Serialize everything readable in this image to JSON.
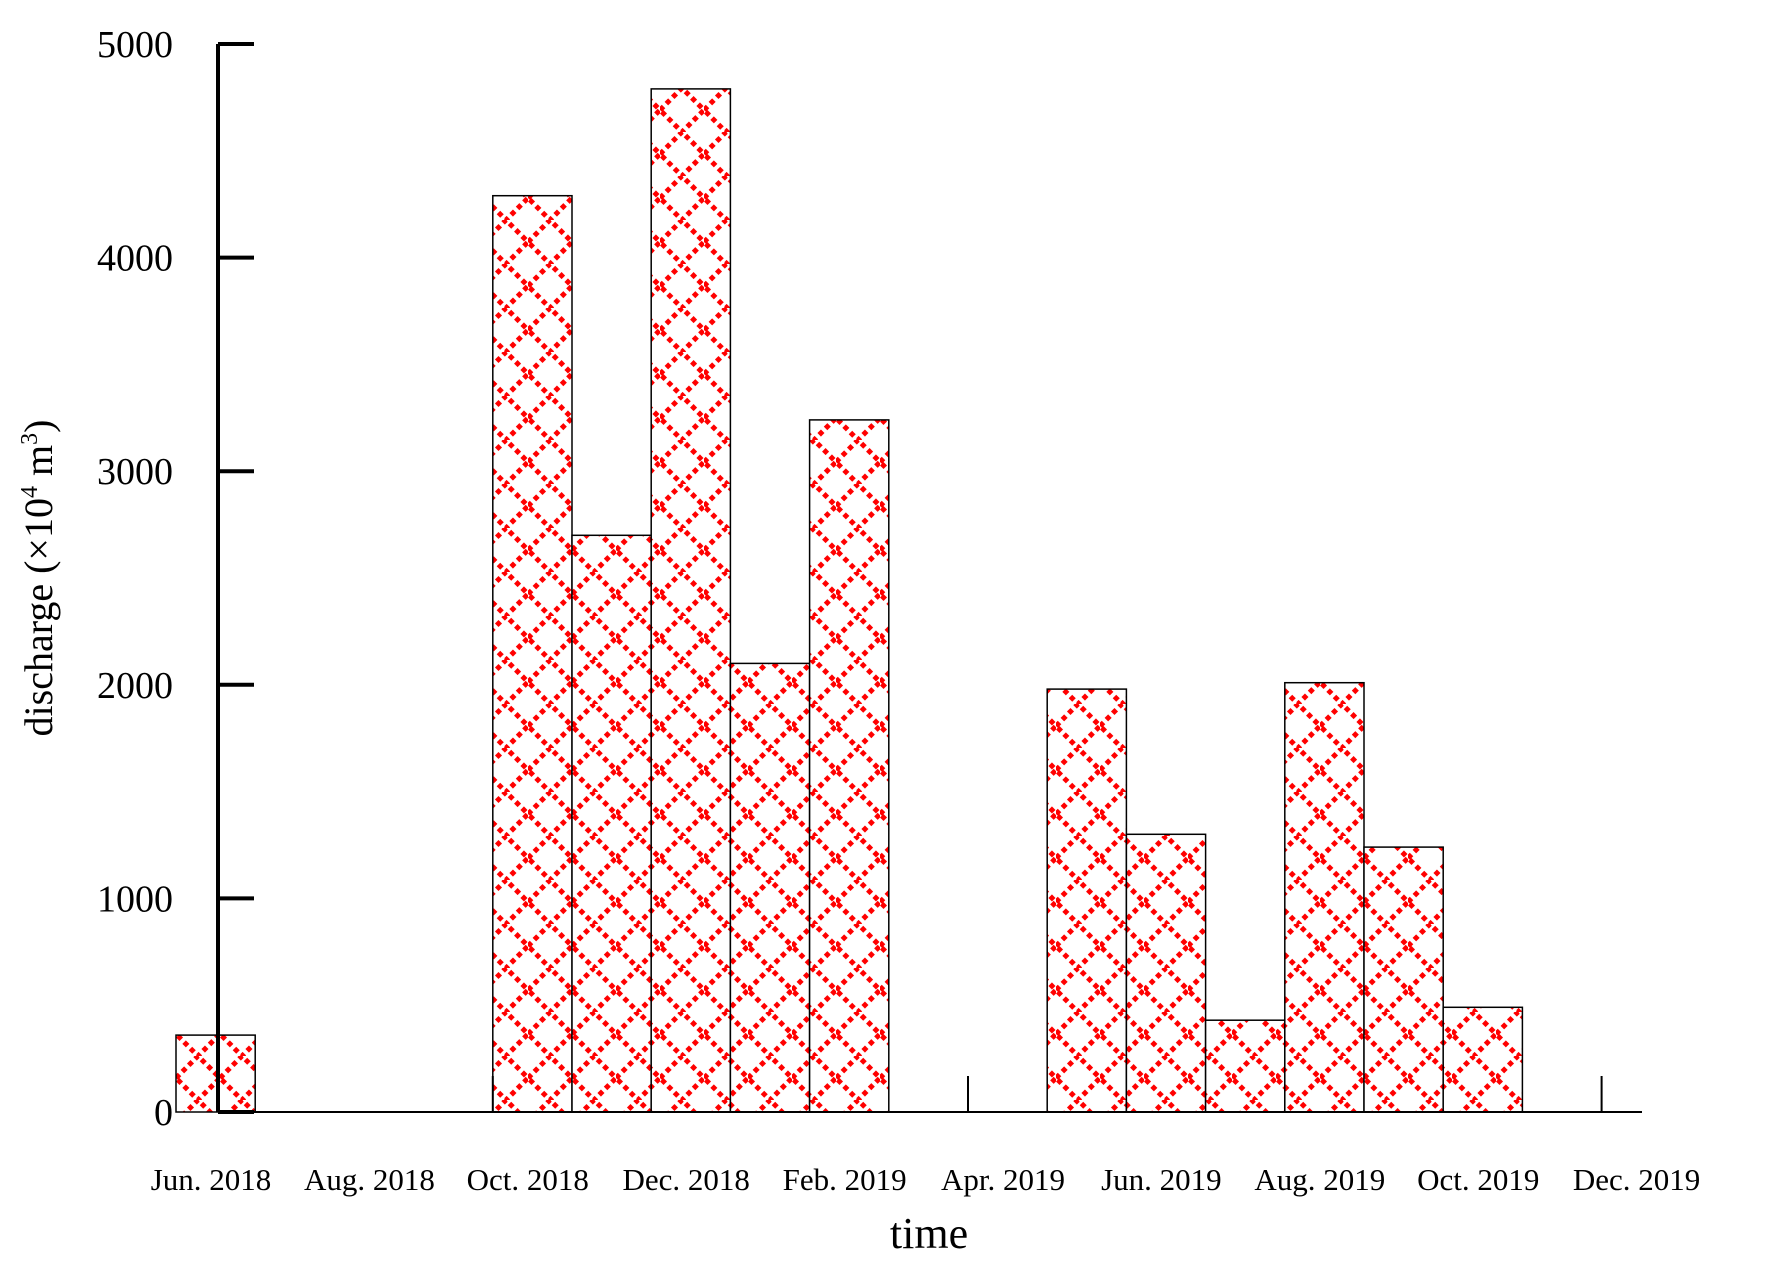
{
  "chart_data": {
    "type": "bar",
    "title": "",
    "xlabel": "time",
    "ylabel": {
      "prefix": "discharge (×10",
      "exp1": "4",
      "middle": " m",
      "exp2": "3",
      "suffix": ")"
    },
    "ylim": [
      0,
      5000
    ],
    "yticks": [
      0,
      1000,
      2000,
      3000,
      4000,
      5000
    ],
    "x_tick_labels": [
      "Jun. 2018",
      "Aug. 2018",
      "Oct. 2018",
      "Dec. 2018",
      "Feb. 2019",
      "Apr. 2019",
      "Jun. 2019",
      "Aug. 2019",
      "Oct. 2019",
      "Dec. 2019"
    ],
    "categories": [
      "Jun. 2018",
      "Jul. 2018",
      "Aug. 2018",
      "Sep. 2018",
      "Oct. 2018",
      "Nov. 2018",
      "Dec. 2018",
      "Jan. 2019",
      "Feb. 2019",
      "Mar. 2019",
      "Apr. 2019",
      "May 2019",
      "Jun. 2019",
      "Jul. 2019",
      "Aug. 2019",
      "Sep. 2019",
      "Oct. 2019"
    ],
    "values": [
      360,
      null,
      null,
      null,
      4290,
      2700,
      4790,
      2100,
      3240,
      null,
      null,
      1980,
      1300,
      430,
      2010,
      1240,
      490
    ],
    "grid": false,
    "legend": "none",
    "colors": {
      "pattern": "#ff0000",
      "bar_outline": "#000000",
      "axis": "#000000"
    }
  }
}
